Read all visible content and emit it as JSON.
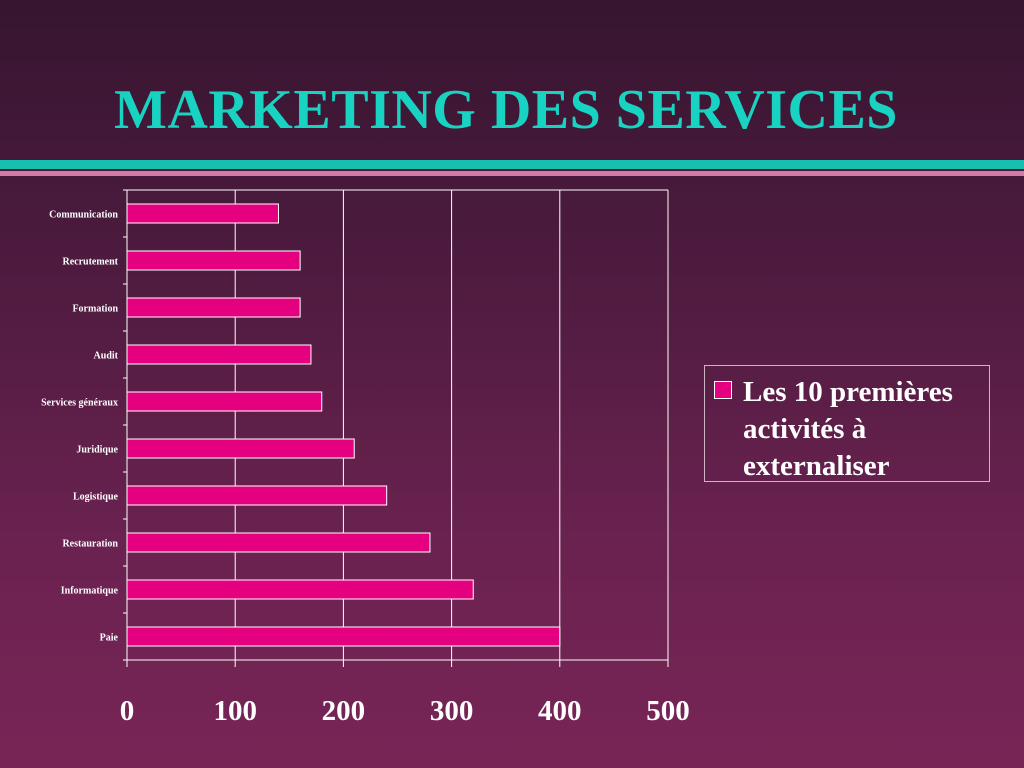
{
  "slide": {
    "title": "MARKETING DES SERVICES"
  },
  "colors": {
    "title": "#19d3c2",
    "bar_fill": "#e4007f",
    "bar_stroke": "#ffffff",
    "rule_teal": "#16bfb0",
    "rule_pink": "#d47aa8",
    "background_top": "#361530",
    "background_bottom": "#782556"
  },
  "chart_data": {
    "type": "bar",
    "orientation": "horizontal",
    "title": "",
    "xlabel": "",
    "ylabel": "",
    "categories": [
      "Communication",
      "Recrutement",
      "Formation",
      "Audit",
      "Services généraux",
      "Juridique",
      "Logistique",
      "Restauration",
      "Informatique",
      "Paie"
    ],
    "series": [
      {
        "name": "Les 10 premières activités à externaliser",
        "values": [
          140,
          160,
          160,
          170,
          180,
          210,
          240,
          280,
          320,
          400
        ]
      }
    ],
    "xlim": [
      0,
      500
    ],
    "xticks": [
      "0",
      "100",
      "200",
      "300",
      "400",
      "500"
    ],
    "grid": true,
    "legend_position": "right"
  }
}
